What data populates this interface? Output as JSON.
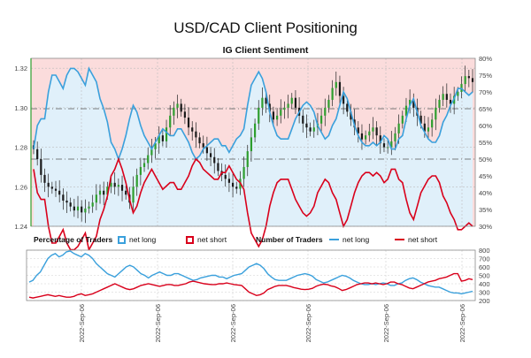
{
  "header": {
    "title": "USD/CAD Client Positioning",
    "subtitle": "IG Client Sentiment"
  },
  "legend": {
    "pct_heading": "Percentage of Traders",
    "num_heading": "Number of Traders",
    "net_long": "net long",
    "net_short": "net short",
    "long_color": "#3aa0dc",
    "short_color": "#d9001b"
  },
  "chart_data": {
    "type": "candlestick+line",
    "price_axis": {
      "ticks": [
        "1.32",
        "1.30",
        "1.28",
        "1.26",
        "1.24"
      ],
      "values": [
        1.32,
        1.3,
        1.28,
        1.26,
        1.24
      ],
      "ylim": [
        1.24,
        1.325
      ]
    },
    "pct_axis": {
      "ticks": [
        "80%",
        "75%",
        "70%",
        "65%",
        "60%",
        "55%",
        "50%",
        "45%",
        "40%",
        "35%",
        "30%"
      ],
      "values": [
        80,
        75,
        70,
        65,
        60,
        55,
        50,
        45,
        40,
        35,
        30
      ],
      "ylim": [
        30,
        80
      ]
    },
    "count_axis": {
      "ticks": [
        "800",
        "700",
        "600",
        "500",
        "400",
        "300",
        "200"
      ],
      "values": [
        800,
        700,
        600,
        500,
        400,
        300,
        200
      ],
      "ylim": [
        200,
        800
      ]
    },
    "date_labels": [
      "2022-Sep-06",
      "2022-Sep-06",
      "2022-Sep-06",
      "2022-Sep-06",
      "2022-Sep-06",
      "2022-Sep-06"
    ],
    "reference_lines_pct": [
      65,
      50
    ],
    "n_points": 120,
    "close": [
      1.279,
      1.274,
      1.266,
      1.262,
      1.26,
      1.259,
      1.258,
      1.256,
      1.253,
      1.252,
      1.25,
      1.248,
      1.25,
      1.247,
      1.249,
      1.25,
      1.252,
      1.256,
      1.258,
      1.256,
      1.26,
      1.262,
      1.26,
      1.261,
      1.258,
      1.256,
      1.252,
      1.26,
      1.266,
      1.27,
      1.272,
      1.276,
      1.279,
      1.282,
      1.286,
      1.283,
      1.29,
      1.296,
      1.3,
      1.302,
      1.298,
      1.295,
      1.29,
      1.288,
      1.285,
      1.282,
      1.28,
      1.277,
      1.275,
      1.272,
      1.268,
      1.266,
      1.264,
      1.262,
      1.26,
      1.259,
      1.264,
      1.27,
      1.278,
      1.285,
      1.292,
      1.3,
      1.305,
      1.302,
      1.298,
      1.294,
      1.296,
      1.299,
      1.3,
      1.302,
      1.305,
      1.3,
      1.296,
      1.292,
      1.29,
      1.288,
      1.29,
      1.292,
      1.296,
      1.3,
      1.304,
      1.31,
      1.313,
      1.306,
      1.302,
      1.298,
      1.294,
      1.29,
      1.287,
      1.284,
      1.286,
      1.288,
      1.29,
      1.286,
      1.282,
      1.28,
      1.28,
      1.283,
      1.287,
      1.292,
      1.296,
      1.301,
      1.304,
      1.3,
      1.296,
      1.292,
      1.288,
      1.29,
      1.294,
      1.3,
      1.304,
      1.307,
      1.304,
      1.302,
      1.306,
      1.308,
      1.312,
      1.316,
      1.315,
      1.313
    ],
    "net_long_pct": [
      53,
      60,
      62,
      62,
      70,
      75,
      75,
      73,
      71,
      75,
      77,
      77,
      76,
      74,
      72,
      77,
      75,
      73,
      68,
      65,
      61,
      55,
      53,
      50,
      53,
      57,
      62,
      66,
      64,
      60,
      57,
      55,
      53,
      55,
      57,
      59,
      58,
      57,
      57,
      59,
      59,
      57,
      55,
      52,
      50,
      51,
      53,
      54,
      55,
      56,
      56,
      54,
      54,
      52,
      54,
      56,
      57,
      59,
      66,
      72,
      74,
      76,
      74,
      70,
      64,
      60,
      57,
      56,
      56,
      56,
      59,
      62,
      64,
      66,
      67,
      66,
      64,
      60,
      58,
      56,
      57,
      60,
      62,
      66,
      70,
      68,
      64,
      60,
      57,
      55,
      54,
      54,
      55,
      54,
      55,
      57,
      56,
      53,
      53,
      56,
      57,
      62,
      66,
      68,
      64,
      60,
      58,
      56,
      55,
      55,
      57,
      61,
      63,
      66,
      68,
      71,
      71,
      70,
      69,
      70
    ],
    "net_long_count": [
      420,
      440,
      500,
      540,
      620,
      700,
      740,
      760,
      720,
      740,
      780,
      790,
      760,
      740,
      720,
      760,
      740,
      700,
      640,
      600,
      560,
      520,
      500,
      480,
      520,
      560,
      600,
      620,
      600,
      560,
      520,
      500,
      470,
      500,
      520,
      540,
      520,
      500,
      500,
      520,
      520,
      500,
      480,
      460,
      440,
      450,
      470,
      480,
      490,
      500,
      500,
      480,
      480,
      460,
      480,
      500,
      510,
      520,
      560,
      600,
      620,
      640,
      620,
      580,
      520,
      480,
      450,
      440,
      440,
      440,
      460,
      480,
      500,
      510,
      520,
      510,
      490,
      450,
      430,
      410,
      420,
      440,
      460,
      480,
      500,
      490,
      470,
      440,
      420,
      400,
      390,
      390,
      400,
      390,
      400,
      410,
      400,
      380,
      380,
      400,
      410,
      440,
      460,
      470,
      450,
      420,
      400,
      380,
      370,
      360,
      360,
      340,
      320,
      300,
      290,
      290,
      280,
      290,
      300,
      310
    ],
    "net_short_count": [
      240,
      230,
      240,
      250,
      260,
      270,
      260,
      250,
      260,
      250,
      240,
      240,
      250,
      270,
      280,
      260,
      270,
      280,
      300,
      320,
      340,
      360,
      380,
      400,
      380,
      360,
      340,
      330,
      340,
      360,
      380,
      390,
      400,
      390,
      380,
      370,
      380,
      390,
      390,
      380,
      380,
      390,
      400,
      420,
      430,
      420,
      410,
      400,
      395,
      390,
      390,
      400,
      400,
      410,
      400,
      390,
      385,
      380,
      340,
      300,
      280,
      260,
      270,
      290,
      330,
      350,
      370,
      380,
      380,
      380,
      370,
      355,
      345,
      335,
      330,
      335,
      345,
      370,
      385,
      395,
      390,
      375,
      365,
      345,
      320,
      330,
      350,
      370,
      390,
      400,
      410,
      410,
      400,
      410,
      400,
      390,
      400,
      420,
      420,
      400,
      390,
      370,
      350,
      340,
      360,
      380,
      400,
      420,
      430,
      440,
      460,
      470,
      480,
      500,
      520,
      520,
      430,
      440,
      460,
      450
    ]
  }
}
